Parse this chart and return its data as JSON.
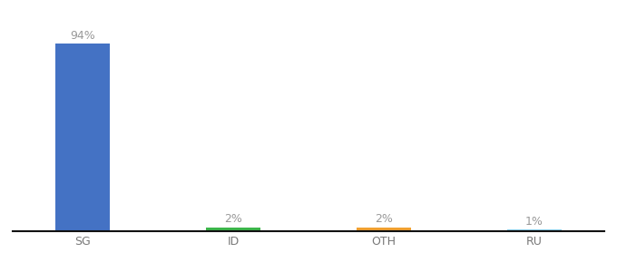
{
  "categories": [
    "SG",
    "ID",
    "OTH",
    "RU"
  ],
  "values": [
    94,
    2,
    2,
    1
  ],
  "bar_colors": [
    "#4472c4",
    "#3cb54a",
    "#f0a030",
    "#87ceeb"
  ],
  "labels": [
    "94%",
    "2%",
    "2%",
    "1%"
  ],
  "ylim": [
    0,
    105
  ],
  "background_color": "#ffffff",
  "label_fontsize": 9,
  "tick_fontsize": 9,
  "bar_width": 0.55
}
